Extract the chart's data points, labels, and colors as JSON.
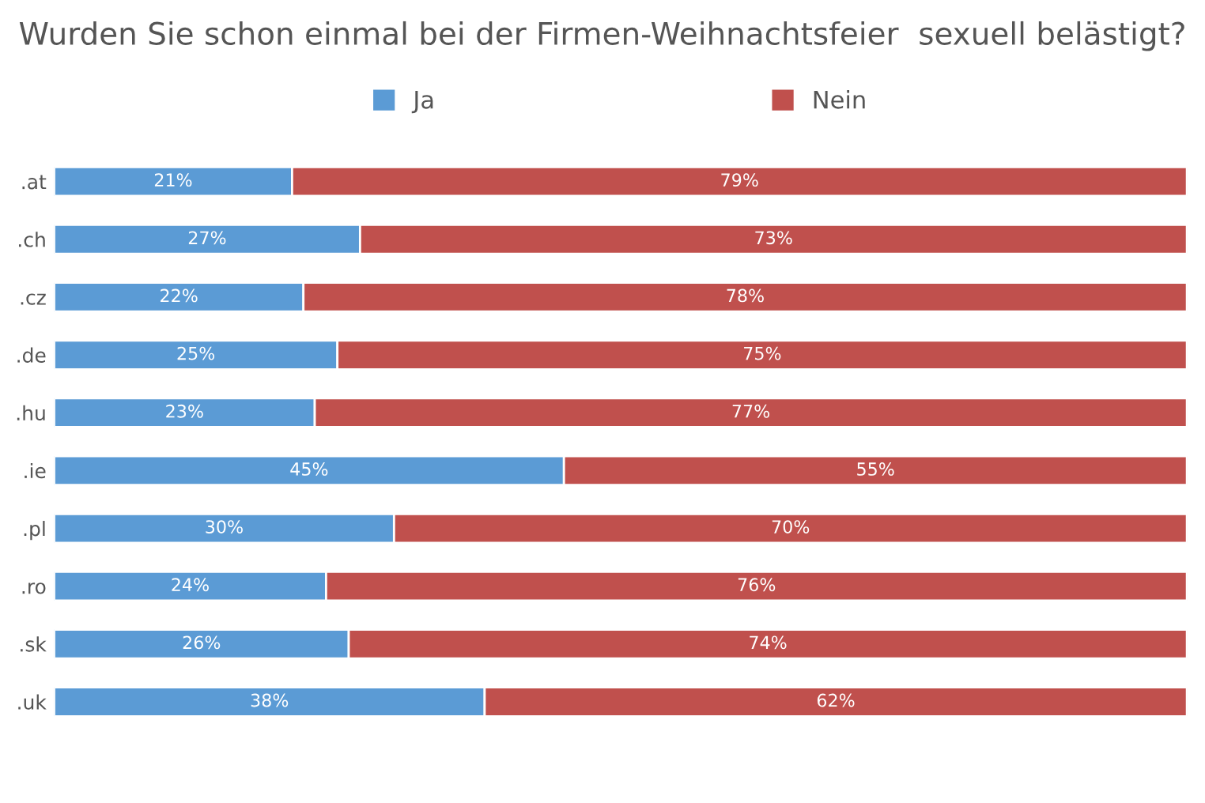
{
  "chart_data": {
    "type": "bar",
    "orientation": "horizontal",
    "stacked": true,
    "title": "Wurden Sie schon einmal bei der Firmen-Weihnachtsfeier  sexuell belästigt?",
    "categories": [
      ".at",
      ".ch",
      ".cz",
      ".de",
      ".hu",
      ".ie",
      ".pl",
      ".ro",
      ".sk",
      ".uk"
    ],
    "series": [
      {
        "name": "Ja",
        "color": "#5b9bd5",
        "values": [
          21,
          27,
          22,
          25,
          23,
          45,
          30,
          24,
          26,
          38
        ],
        "value_labels": [
          "21%",
          "27%",
          "22%",
          "25%",
          "23%",
          "45%",
          "30%",
          "24%",
          "26%",
          "38%"
        ]
      },
      {
        "name": "Nein",
        "color": "#c0504d",
        "values": [
          79,
          73,
          78,
          75,
          77,
          55,
          70,
          76,
          74,
          62
        ],
        "value_labels": [
          "79%",
          "73%",
          "78%",
          "75%",
          "77%",
          "55%",
          "70%",
          "76%",
          "74%",
          "62%"
        ]
      }
    ],
    "xlim": [
      0,
      100
    ],
    "tick_labels": "y",
    "grid": false,
    "legend": "top"
  }
}
